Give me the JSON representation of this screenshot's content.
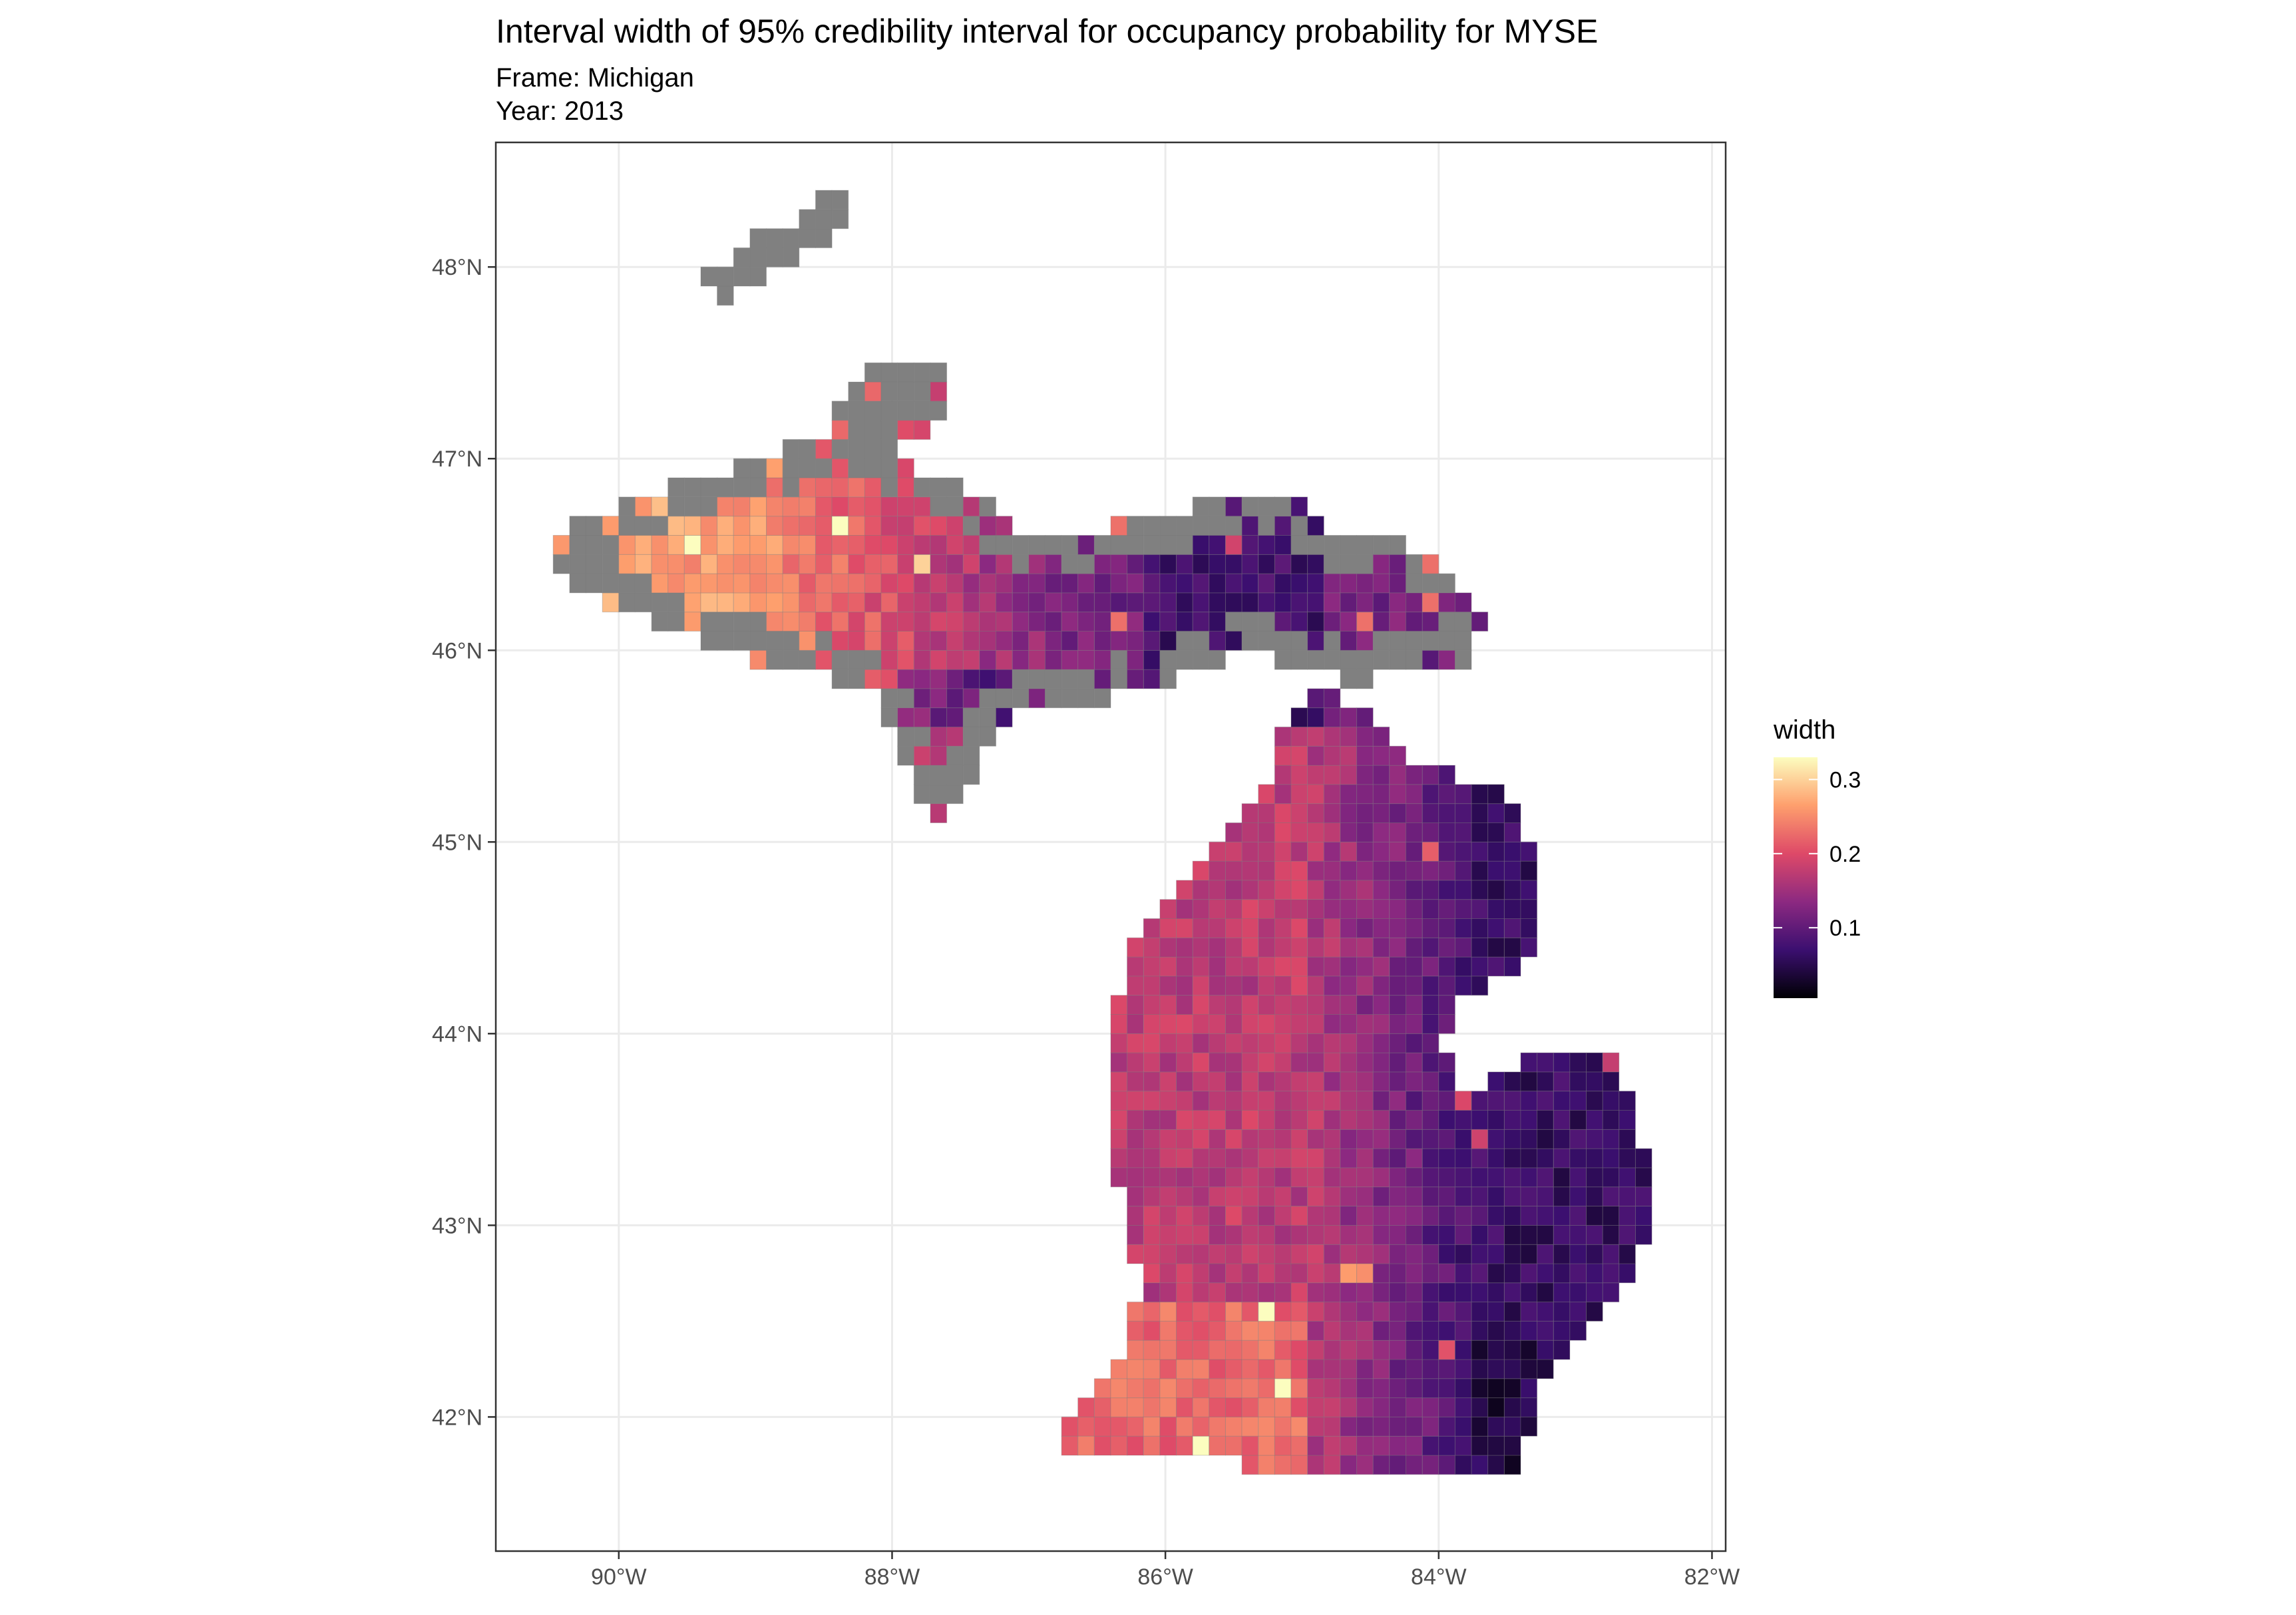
{
  "title": "Interval width of 95% credibility interval for occupancy probability for MYSE",
  "subtitle": {
    "frame": "Frame: Michigan",
    "year": "Year: 2013"
  },
  "map": {
    "region": "Michigan",
    "projection": "longitude/latitude grid",
    "xlim_lon": [
      -90.9,
      -81.9
    ],
    "ylim_lat": [
      41.3,
      48.65
    ],
    "x_ticks": [
      {
        "lon": -90,
        "label": "90°W"
      },
      {
        "lon": -88,
        "label": "88°W"
      },
      {
        "lon": -86,
        "label": "86°W"
      },
      {
        "lon": -84,
        "label": "84°W"
      },
      {
        "lon": -82,
        "label": "82°W"
      }
    ],
    "y_ticks": [
      {
        "lat": 42,
        "label": "42°N"
      },
      {
        "lat": 43,
        "label": "43°N"
      },
      {
        "lat": 44,
        "label": "44°N"
      },
      {
        "lat": 45,
        "label": "45°N"
      },
      {
        "lat": 46,
        "label": "46°N"
      },
      {
        "lat": 47,
        "label": "47°N"
      },
      {
        "lat": 48,
        "label": "48°N"
      }
    ],
    "grid": true,
    "na_color": "#808080",
    "cell_size_lon": 0.12,
    "cell_size_lat": 0.1
  },
  "legend": {
    "title": "width",
    "position": "right",
    "palette": "magma",
    "colors": [
      "#000004",
      "#3b0f70",
      "#8c2981",
      "#de4968",
      "#fe9f6d",
      "#fcfdbf"
    ],
    "range": [
      0.005,
      0.33
    ],
    "ticks": [
      {
        "value": 0.1,
        "label": "0.1"
      },
      {
        "value": 0.2,
        "label": "0.2"
      },
      {
        "value": 0.3,
        "label": "0.3"
      }
    ]
  }
}
